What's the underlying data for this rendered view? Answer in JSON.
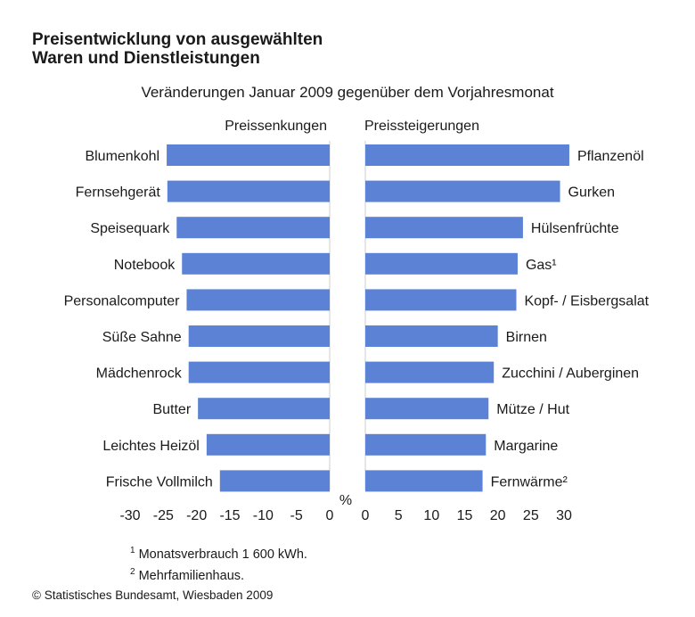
{
  "chart_data": {
    "type": "bar",
    "orientation": "horizontal",
    "title_line1": "Preisentwicklung von ausgewählten",
    "title_line2": "Waren und Dienstleistungen",
    "subtitle": "Veränderungen Januar 2009 gegenüber dem Vorjahresmonat",
    "left_panel_label": "Preissenkungen",
    "right_panel_label": "Preissteigerungen",
    "unit_label": "%",
    "bar_color": "#5b82d4",
    "left_panel": {
      "xlim": [
        -30,
        0
      ],
      "ticks": [
        "-30",
        "-25",
        "-20",
        "-15",
        "-10",
        "-5",
        "0"
      ],
      "categories": [
        "Blumenkohl",
        "Fernsehgerät",
        "Speisequark",
        "Notebook",
        "Personalcomputer",
        "Süße Sahne",
        "Mädchenrock",
        "Butter",
        "Leichtes Heizöl",
        "Frische Vollmilch"
      ],
      "values": [
        -24.5,
        -24.4,
        -23.0,
        -22.2,
        -21.5,
        -21.2,
        -21.2,
        -19.8,
        -18.5,
        -16.5
      ]
    },
    "right_panel": {
      "xlim": [
        0,
        30
      ],
      "ticks": [
        "0",
        "5",
        "10",
        "15",
        "20",
        "25",
        "30"
      ],
      "categories": [
        "Pflanzenöl",
        "Gurken",
        "Hülsenfrüchte",
        "Gas¹",
        "Kopf- / Eisbergsalat",
        "Birnen",
        "Zucchini / Auberginen",
        "Mütze / Hut",
        "Margarine",
        "Fernwärme²"
      ],
      "values": [
        30.8,
        29.4,
        23.8,
        23.0,
        22.8,
        20.0,
        19.4,
        18.6,
        18.2,
        17.7
      ]
    }
  },
  "footnotes": [
    {
      "mark": "1",
      "text": "Monatsverbrauch 1 600 kWh."
    },
    {
      "mark": "2",
      "text": "Mehrfamilienhaus."
    }
  ],
  "source": "© Statistisches Bundesamt, Wiesbaden 2009"
}
